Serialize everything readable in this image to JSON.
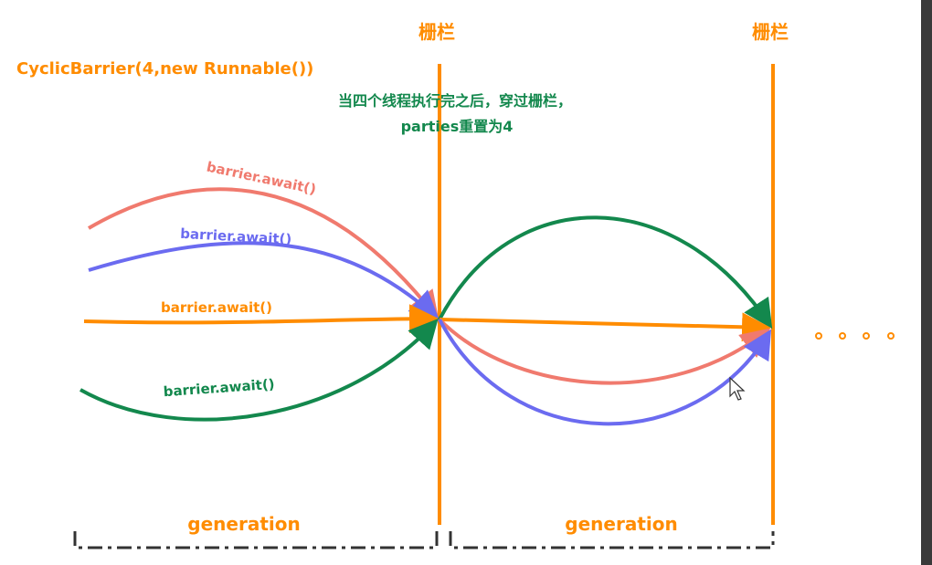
{
  "title": "CyclicBarrier(4,new Runnable())",
  "barriers": [
    {
      "label": "栅栏"
    },
    {
      "label": "栅栏"
    }
  ],
  "note": [
    "当四个线程执行完之后，穿过栅栏，",
    "parties重置为4"
  ],
  "threads": [
    {
      "label": "barrier.await()"
    },
    {
      "label": "barrier.await()"
    },
    {
      "label": "barrier.await()"
    },
    {
      "label": "barrier.await()"
    }
  ],
  "generations": [
    {
      "label": "generation"
    },
    {
      "label": "generation"
    }
  ]
}
